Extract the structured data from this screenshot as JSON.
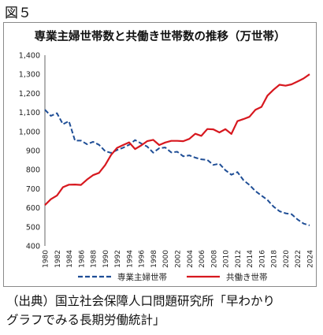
{
  "figure_label": "図５",
  "source_lines": [
    "（出典）国立社会保障人口問題研究所「早わかり",
    "グラフでみる長期労働統計」"
  ],
  "chart_data": {
    "type": "line",
    "title": "専業主婦世帯数と共働き世帯数の推移（万世帯）",
    "xlabel": "",
    "ylabel": "",
    "ylim": [
      400,
      1400
    ],
    "yticks": [
      400,
      500,
      600,
      700,
      800,
      900,
      1000,
      1100,
      1200,
      1300,
      1400
    ],
    "ytick_labels": [
      "400",
      "500",
      "600",
      "700",
      "800",
      "900",
      "1,000",
      "1,100",
      "1,200",
      "1,300",
      "1,400"
    ],
    "x": [
      1980,
      1981,
      1982,
      1983,
      1984,
      1985,
      1986,
      1987,
      1988,
      1989,
      1990,
      1991,
      1992,
      1993,
      1994,
      1995,
      1996,
      1997,
      1998,
      1999,
      2000,
      2001,
      2002,
      2003,
      2004,
      2005,
      2006,
      2007,
      2008,
      2009,
      2010,
      2011,
      2012,
      2013,
      2014,
      2015,
      2016,
      2017,
      2018,
      2019,
      2020,
      2021,
      2022,
      2023,
      2024
    ],
    "xticks": [
      1980,
      1982,
      1984,
      1986,
      1988,
      1990,
      1992,
      1994,
      1996,
      1998,
      2000,
      2002,
      2004,
      2006,
      2008,
      2010,
      2012,
      2014,
      2016,
      2018,
      2020,
      2022,
      2024
    ],
    "grid": false,
    "legend": "bottom",
    "series": [
      {
        "name": "専業主婦世帯",
        "color": "#1f4e96",
        "dash": true,
        "values": [
          1114,
          1082,
          1096,
          1038,
          1054,
          952,
          952,
          933,
          946,
          930,
          897,
          888,
          903,
          915,
          930,
          955,
          937,
          921,
          889,
          912,
          916,
          890,
          894,
          870,
          875,
          863,
          854,
          851,
          825,
          831,
          797,
          773,
          787,
          745,
          720,
          687,
          664,
          641,
          606,
          582,
          571,
          566,
          539,
          517,
          508
        ]
      },
      {
        "name": "共働き世帯",
        "color": "#d7181f",
        "dash": false,
        "values": [
          614,
          645,
          664,
          708,
          721,
          722,
          720,
          748,
          771,
          783,
          823,
          877,
          914,
          929,
          943,
          908,
          927,
          949,
          956,
          929,
          942,
          951,
          951,
          949,
          961,
          988,
          977,
          1013,
          1011,
          995,
          1012,
          987,
          1054,
          1065,
          1077,
          1114,
          1129,
          1188,
          1219,
          1245,
          1240,
          1247,
          1262,
          1278,
          1300
        ]
      }
    ]
  }
}
